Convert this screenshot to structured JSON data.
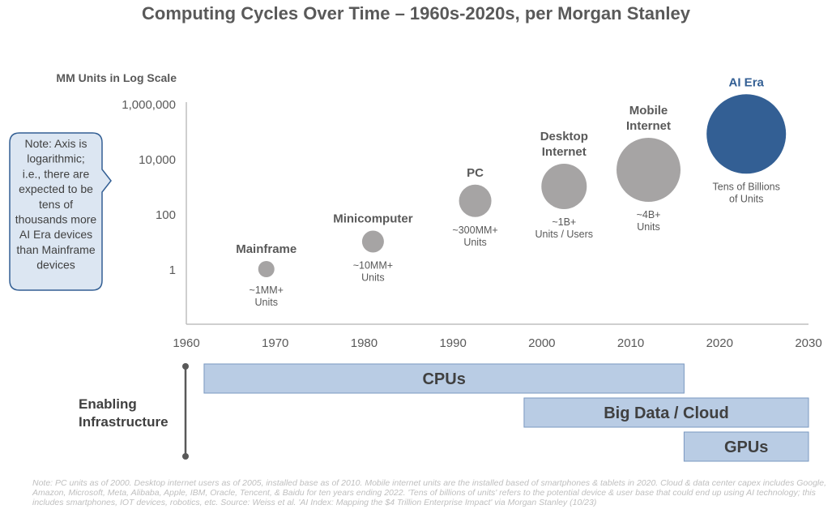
{
  "title": "Computing Cycles Over Time – 1960s-2020s, per Morgan Stanley",
  "chart_data": {
    "type": "scatter",
    "scale": "log",
    "ylabel": "MM Units in Log Scale",
    "xlim": [
      1960,
      2030
    ],
    "x_ticks": [
      "1960",
      "1970",
      "1980",
      "1990",
      "2000",
      "2010",
      "2020",
      "2030"
    ],
    "y_ticks": [
      "1,000,000",
      "10,000",
      "100",
      "1"
    ],
    "y_tick_values": [
      1000000,
      10000,
      100,
      1
    ],
    "points": [
      {
        "name": "Mainframe",
        "x": 1969,
        "y": 1,
        "label": "~1MM+\nUnits",
        "color": "#a6a4a4",
        "size": 1
      },
      {
        "name": "Minicomputer",
        "x": 1981,
        "y": 10,
        "label": "~10MM+\nUnits",
        "color": "#a6a4a4",
        "size": 1.35
      },
      {
        "name": "PC",
        "x": 1992.5,
        "y": 300,
        "label": "~300MM+\nUnits",
        "color": "#a6a4a4",
        "size": 2
      },
      {
        "name": "Desktop\nInternet",
        "x": 2002.5,
        "y": 1000,
        "label": "~1B+\nUnits / Users",
        "color": "#a6a4a4",
        "size": 2.8
      },
      {
        "name": "Mobile\nInternet",
        "x": 2012,
        "y": 4000,
        "label": "~4B+\nUnits",
        "color": "#a6a4a4",
        "size": 3.95
      },
      {
        "name": "AI Era",
        "x": 2023,
        "y": 80000,
        "label": "Tens of Billions\nof Units",
        "color": "#335f94",
        "size": 4.9
      }
    ],
    "note": "Note: Axis is logarithmic; i.e., there are expected to be tens of thousands more AI Era devices than Mainframe devices",
    "infrastructure": {
      "label": "Enabling Infrastructure",
      "bars": [
        {
          "name": "CPUs",
          "start": 1962,
          "end": 2016
        },
        {
          "name": "Big Data / Cloud",
          "start": 1998,
          "end": 2030
        },
        {
          "name": "GPUs",
          "start": 2016,
          "end": 2030
        }
      ]
    }
  },
  "footnote": "Note: PC units as of 2000. Desktop internet users as of 2005, installed base as of 2010. Mobile internet units are the installed based of smartphones & tablets in 2020. Cloud & data center capex includes Google, Amazon, Microsoft, Meta, Alibaba, Apple, IBM, Oracle, Tencent, & Baidu for ten years ending 2022. 'Tens of billions of units' refers to the potential device & user base that could end up using AI technology; this includes smartphones, IOT devices, robotics, etc. Source: Weiss et al. 'AI Index: Mapping the $4 Trillion Enterprise Impact' via Morgan Stanley (10/23)"
}
